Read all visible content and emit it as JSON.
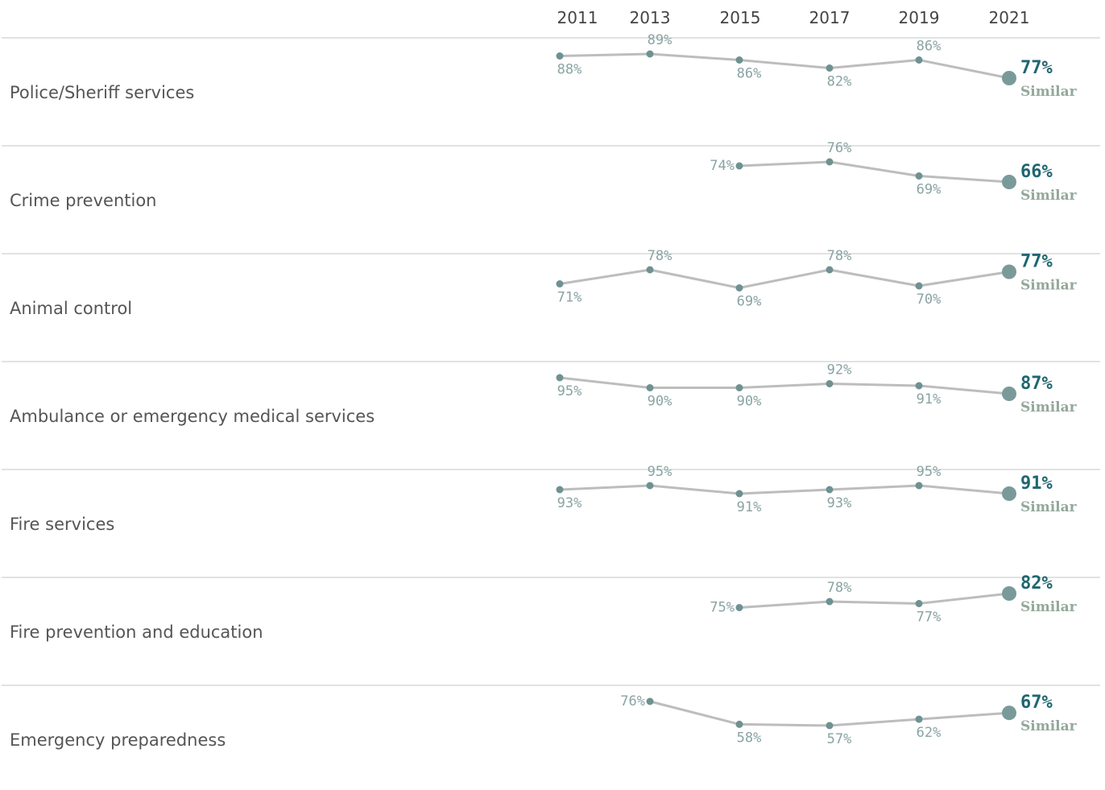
{
  "chart_data": {
    "type": "line",
    "x": [
      "2011",
      "2013",
      "2015",
      "2017",
      "2019",
      "2021"
    ],
    "series": [
      {
        "name": "Police/Sheriff services",
        "values": [
          88,
          89,
          86,
          82,
          86,
          77
        ],
        "labels": [
          "88%",
          "89%",
          "86%",
          "82%",
          "86%",
          "77%"
        ],
        "comparison": "Similar"
      },
      {
        "name": "Crime prevention",
        "values": [
          null,
          null,
          74,
          76,
          69,
          66
        ],
        "labels": [
          "",
          "",
          "74%",
          "76%",
          "69%",
          "66%"
        ],
        "comparison": "Similar"
      },
      {
        "name": "Animal control",
        "values": [
          71,
          78,
          69,
          78,
          70,
          77
        ],
        "labels": [
          "71%",
          "78%",
          "69%",
          "78%",
          "70%",
          "77%"
        ],
        "comparison": "Similar"
      },
      {
        "name": "Ambulance or emergency medical services",
        "values": [
          95,
          90,
          90,
          92,
          91,
          87
        ],
        "labels": [
          "95%",
          "90%",
          "90%",
          "92%",
          "91%",
          "87%"
        ],
        "comparison": "Similar"
      },
      {
        "name": "Fire services",
        "values": [
          93,
          95,
          91,
          93,
          95,
          91
        ],
        "labels": [
          "93%",
          "95%",
          "91%",
          "93%",
          "95%",
          "91%"
        ],
        "comparison": "Similar"
      },
      {
        "name": "Fire prevention and education",
        "values": [
          null,
          null,
          75,
          78,
          77,
          82
        ],
        "labels": [
          "",
          "",
          "75%",
          "78%",
          "77%",
          "82%"
        ],
        "comparison": "Similar"
      },
      {
        "name": "Emergency preparedness",
        "values": [
          null,
          76,
          58,
          57,
          62,
          67
        ],
        "labels": [
          "",
          "76%",
          "58%",
          "57%",
          "62%",
          "67%"
        ],
        "comparison": "Similar"
      }
    ],
    "grid": false,
    "legend": "none"
  }
}
